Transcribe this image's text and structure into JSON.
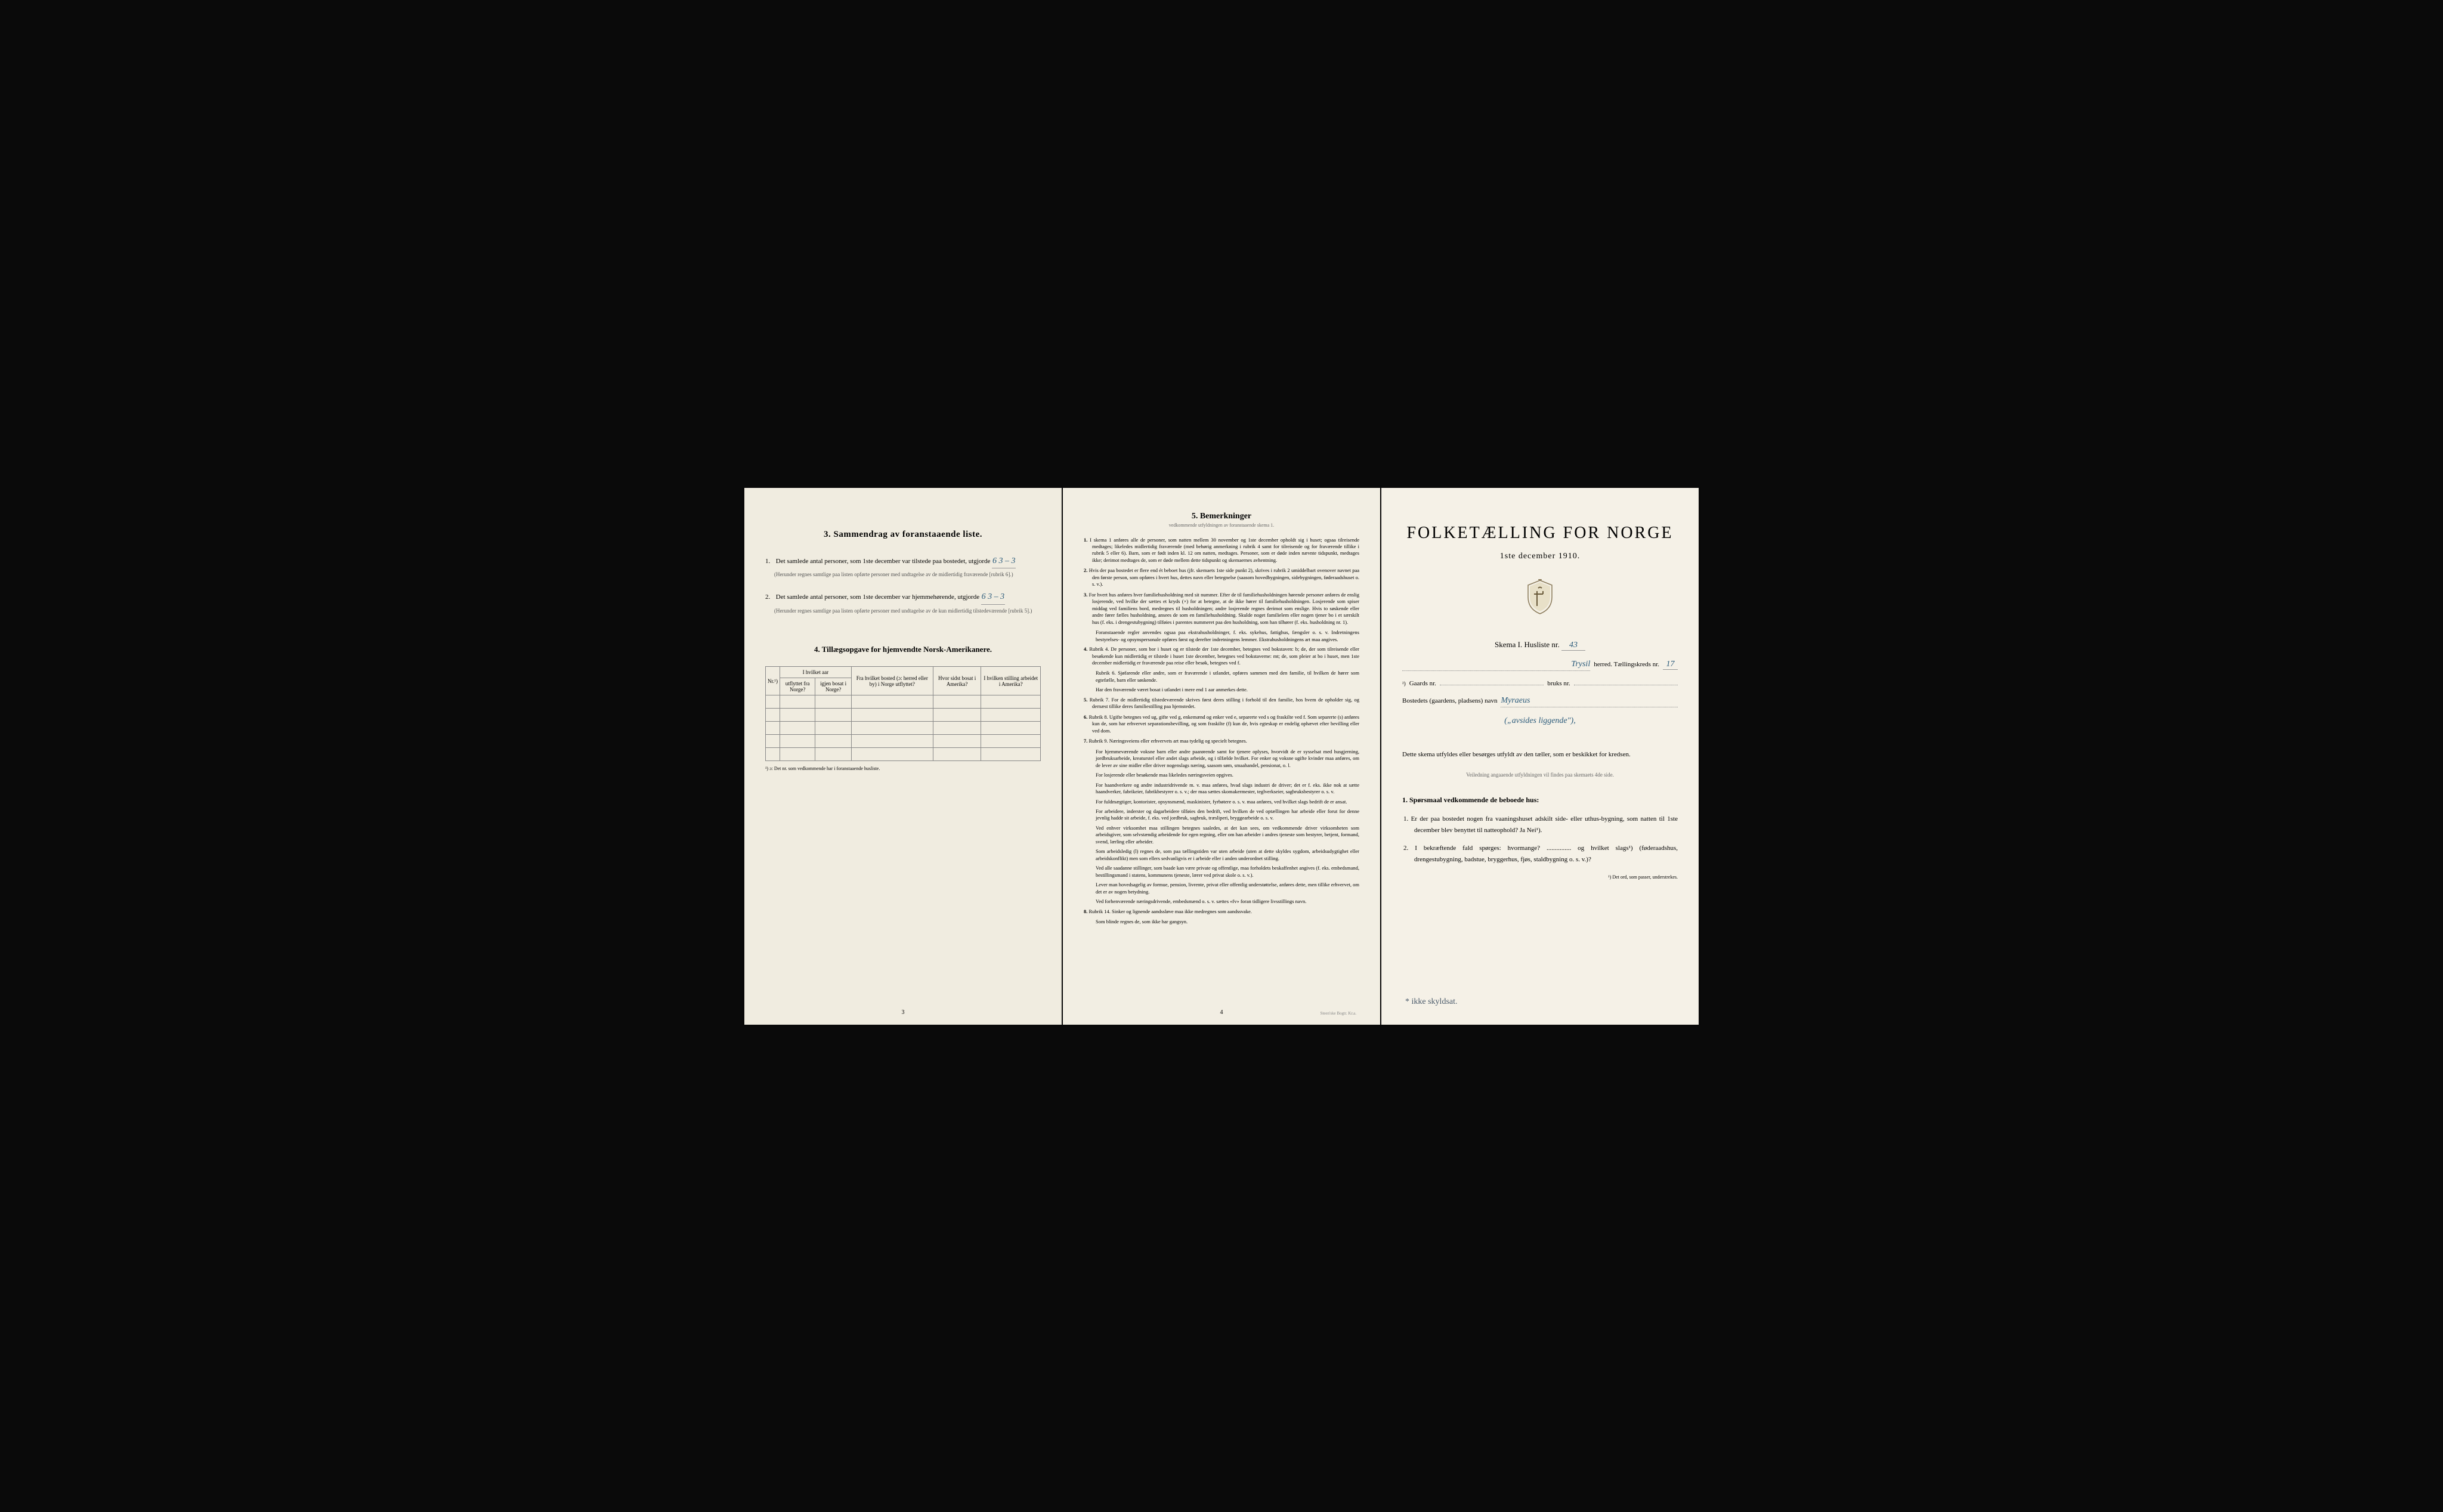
{
  "left": {
    "section3_title": "3.   Sammendrag av foranstaaende liste.",
    "item1_text": "Det samlede antal personer, som 1ste december var tilstede paa bostedet, utgjorde",
    "item1_value": "6    3 – 3",
    "item1_note": "(Herunder regnes samtlige paa listen opførte personer med undtagelse av de midlertidig fraværende [rubrik 6].)",
    "item2_text": "Det samlede antal personer, som 1ste december var hjemmehørende, utgjorde",
    "item2_value": "6    3 – 3",
    "item2_note": "(Herunder regnes samtlige paa listen opførte personer med undtagelse av de kun midlertidig tilstedeværende [rubrik 5].)",
    "section4_title": "4.   Tillægsopgave for hjemvendte Norsk-Amerikanere.",
    "table": {
      "headers": [
        "Nr.¹)",
        "I hvilket aar",
        "Fra hvilket bosted (ɔ: herred eller by) i Norge utflyttet?",
        "Hvor sidst bosat i Amerika?",
        "I hvilken stilling arbeidet i Amerika?"
      ],
      "sub_headers": [
        "utflyttet fra Norge?",
        "igjen bosat i Norge?"
      ],
      "rows": 5
    },
    "table_footnote": "¹) ɔ: Det nr. som vedkommende har i foranstaaende husliste.",
    "page_num": "3"
  },
  "middle": {
    "title": "5.   Bemerkninger",
    "subtitle": "vedkommende utfyldningen av foranstaaende skema 1.",
    "items": [
      {
        "n": "1.",
        "t": "I skema 1 anføres alle de personer, som natten mellem 30 november og 1ste december opholdt sig i huset; ogsaa tilreisende medtages; likeledes midlertidig fraværende (med behørig anmerkning i rubrik 4 samt for tilreisende og for fraværende tillike i rubrik 5 eller 6). Barn, som er født inden kl. 12 om natten, medtages. Personer, som er døde inden nævnte tidspunkt, medtages ikke; derimot medtages de, som er døde mellem dette tidspunkt og skemaernes avhentning."
      },
      {
        "n": "2.",
        "t": "Hvis der paa bostedet er flere end ét beboet hus (jfr. skemaets 1ste side punkt 2), skrives i rubrik 2 umiddelbart ovenover navnet paa den første person, som opføres i hvert hus, dettes navn eller betegnelse (saasom hovedbygningen, sidebygningen, føderaadshuset o. s. v.)."
      },
      {
        "n": "3.",
        "t": "For hvert hus anføres hver familiehusholdning med sit nummer. Efter de til familiehusholdningen hørende personer anføres de enslig losjerende, ved hvilke der sættes et kryds (×) for at betegne, at de ikke hører til familiehusholdningen. Losjerende som spiser middag ved familiens bord, medregnes til husholdningen; andre losjerende regnes derimot som enslige. Hvis to søskende eller andre fører fælles husholdning, ansees de som en familiehusholdning. Skulde noget familielem eller nogen tjener bo i et særskilt hus (f. eks. i drengestubygning) tilføies i parentes nummeret paa den husholdning, som han tilhører (f. eks. husholdning nr. 1)."
      },
      {
        "n": "",
        "t": "Foranstaaende regler anvendes ogsaa paa ekstrahusholdninger, f. eks. sykehus, fattighus, fængsler o. s. v. Indretningens bestyrelses- og opsynspersonale opføres først og derefter indretningens lemmer. Ekstrahusholdningens art maa angives."
      },
      {
        "n": "4.",
        "t": "Rubrik 4. De personer, som bor i huset og er tilstede der 1ste december, betegnes ved bokstaven: b; de, der som tilreisende eller besøkende kun midlertidig er tilstede i huset 1ste december, betegnes ved bokstaverne: mt; de, som pleier at bo i huset, men 1ste december midlertidig er fraværende paa reise eller besøk, betegnes ved f."
      },
      {
        "n": "",
        "t": "Rubrik 6. Sjøfarende eller andre, som er fraværende i utlandet, opføres sammen med den familie, til hvilken de hører som egtefælle, barn eller søskende."
      },
      {
        "n": "",
        "t": "Har den fraværende været bosat i utlandet i mere end 1 aar anmerkes dette."
      },
      {
        "n": "5.",
        "t": "Rubrik 7. For de midlertidig tilstedeværende skrives først deres stilling i forhold til den familie, hos hvem de opholder sig, og dernæst tillike deres familiestilling paa hjemstedet."
      },
      {
        "n": "6.",
        "t": "Rubrik 8. Ugifte betegnes ved ug, gifte ved g, enkemænd og enker ved e, separerte ved s og fraskilte ved f. Som separerte (s) anføres kun de, som har erhvervet separationsbevilling, og som fraskilte (f) kun de, hvis egteskap er endelig ophævet efter bevilling eller ved dom."
      },
      {
        "n": "7.",
        "t": "Rubrik 9. Næringsveiens eller erhvervets art maa tydelig og specielt betegnes."
      },
      {
        "n": "",
        "t": "For hjemmeværende voksne barn eller andre paarørende samt for tjenere oplyses, hvorvidt de er sysselsat med husgjerning, jordbruksarbeide, kreaturstel eller andet slags arbeide, og i tilfælde hvilket. For enker og voksne ugifte kvinder maa anføres, om de lever av sine midler eller driver nogenslags næring, saasom søm, smaahandel, pensionat, o. l."
      },
      {
        "n": "",
        "t": "For losjerende eller besøkende maa likeledes næringsveien opgives."
      },
      {
        "n": "",
        "t": "For haandverkere og andre industridrivende m. v. maa anføres, hvad slags industri de driver; det er f. eks. ikke nok at sætte haandverker, fabrikeier, fabrikbestyrer o. s. v.; der maa sættes skomakermester, teglverkseier, sagbruksbestyrer o. s. v."
      },
      {
        "n": "",
        "t": "For fuldmægtiger, kontorister, opsynsmænd, maskinister, fyrbøtere o. s. v. maa anføres, ved hvilket slags bedrift de er ansat."
      },
      {
        "n": "",
        "t": "For arbeidere, inderster og dagarbeidere tilføies den bedrift, ved hvilken de ved optællingen har arbeide eller forut for denne jevnlig hadde sit arbeide, f. eks. ved jordbruk, sagbruk, træsliperi, bryggearbeide o. s. v."
      },
      {
        "n": "",
        "t": "Ved enhver virksomhet maa stillingen betegnes saaledes, at det kan sees, om vedkommende driver virksomheten som arbeidsgiver, som selvstændig arbeidende for egen regning, eller om han arbeider i andres tjeneste som bestyrer, betjent, formand, svend, lærling eller arbeider."
      },
      {
        "n": "",
        "t": "Som arbeidsledig (l) regnes de, som paa tællingstiden var uten arbeide (uten at dette skyldes sygdom, arbeidsudygtighet eller arbeidskonflikt) men som ellers sedvanligvis er i arbeide eller i anden underordnet stilling."
      },
      {
        "n": "",
        "t": "Ved alle saadanne stillinger, som baade kan være private og offentlige, maa forholdets beskaffenhet angives (f. eks. embedsmand, bestillingsmand i statens, kommunens tjeneste, lærer ved privat skole o. s. v.)."
      },
      {
        "n": "",
        "t": "Lever man hovedsagelig av formue, pension, livrente, privat eller offentlig understøttelse, anføres dette, men tillike erhvervet, om det er av nogen betydning."
      },
      {
        "n": "",
        "t": "Ved forhenværende næringsdrivende, embedsmænd o. s. v. sættes «fv» foran tidligere livsstillings navn."
      },
      {
        "n": "8.",
        "t": "Rubrik 14. Sinker og lignende aandssløve maa ikke medregnes som aandssvake."
      },
      {
        "n": "",
        "t": "Som blinde regnes de, som ikke har gangsyn."
      }
    ],
    "page_num": "4",
    "printer": "Steen'ske Bogtr. Kr.a."
  },
  "right": {
    "title": "FOLKETÆLLING FOR NORGE",
    "date": "1ste december 1910.",
    "skema_label": "Skema I.   Husliste nr.",
    "skema_nr": "43",
    "herred_value": "Trysil",
    "herred_label": "herred.   Tællingskreds nr.",
    "kreds_nr": "17",
    "gaards_label": "Gaards nr.",
    "bruks_label": "bruks nr.",
    "bosted_label": "Bostedets (gaardens, pladsens) navn",
    "bosted_value": "Myraeus",
    "bosted_sub": "(„avsides liggende\"),",
    "instruction": "Dette skema utfyldes eller besørges utfyldt av den tæller, som er beskikket for kredsen.",
    "instruction_sub": "Veiledning angaaende utfyldningen vil findes paa skemaets 4de side.",
    "q_title": "1. Spørsmaal vedkommende de beboede hus:",
    "q1": "1.  Er der paa bostedet nogen fra vaaningshuset adskilt side- eller uthus-bygning, som natten til 1ste december blev benyttet til natteophold?   Ja   Nei¹).",
    "q2": "2.  I bekræftende fald spørges: hvormange? ............... og hvilket slags¹) (føderaadshus, drengestubygning, badstue, bryggerhus, fjøs, staldbygning o. s. v.)?",
    "footnote": "¹) Det ord, som passer, understrekes.",
    "hand_note": "* ikke skyldsat."
  }
}
